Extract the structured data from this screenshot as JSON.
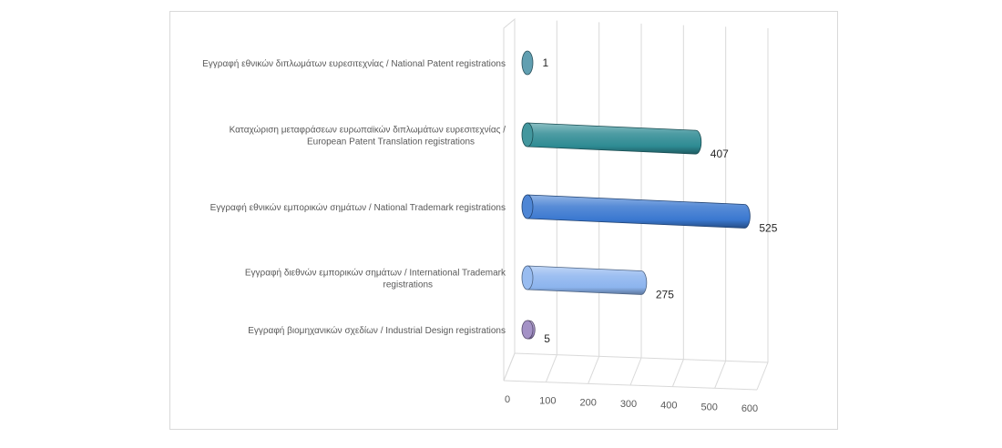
{
  "chart_data": {
    "type": "bar",
    "orientation": "horizontal",
    "style": "3d-cylinder",
    "title": "",
    "xlabel": "",
    "ylabel": "",
    "categories": [
      {
        "lines": [
          "Εγγραφή  εθνικών διπλωμάτων ευρεσιτεχνίας / National Patent registrations"
        ]
      },
      {
        "lines": [
          "Καταχώριση μεταφράσεων ευρωπαϊκών διπλωμάτων ευρεσιτεχνίας /",
          "European Patent Translation registrations"
        ]
      },
      {
        "lines": [
          "Εγγραφή εθνικών εμπορικών σημάτων / National Trademark registrations"
        ]
      },
      {
        "lines": [
          "Εγγραφή  διεθνών εμπορικών σημάτων / International Trademark",
          "registrations"
        ]
      },
      {
        "lines": [
          "Εγγραφή βιομηχανικών σχεδίων / Industrial Design registrations"
        ]
      }
    ],
    "values": [
      1,
      407,
      525,
      275,
      5
    ],
    "data_labels": [
      "1",
      "407",
      "525",
      "275",
      "5"
    ],
    "colors": [
      "#4F94A8",
      "#2E8B93",
      "#3A78D0",
      "#8CB4EE",
      "#9A86C0"
    ],
    "xlim": [
      0,
      600
    ],
    "ticks": [
      "0",
      "100",
      "200",
      "300",
      "400",
      "500",
      "600"
    ],
    "tick_values": [
      0,
      100,
      200,
      300,
      400,
      500,
      600
    ],
    "grid": true,
    "legend": "none"
  }
}
